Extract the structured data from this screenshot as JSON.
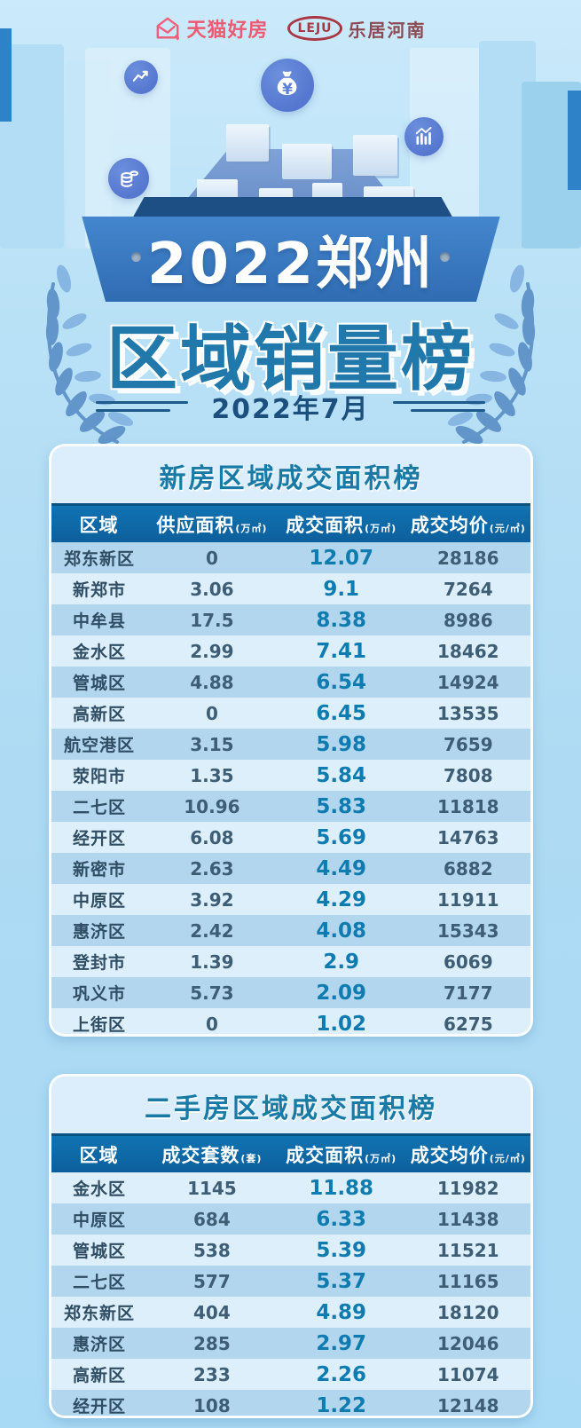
{
  "header": {
    "tmall_logo_text": "天猫好房",
    "leju_logo_text": "LEJU",
    "leju_brand_text": "乐居河南"
  },
  "hero": {
    "banner_title": "2022郑州",
    "main_title": "区域销量榜",
    "subtitle": "2022年7月",
    "money_bag_symbol": "¥"
  },
  "icons": {
    "money_bag": "money-bag-icon",
    "trend_line": "trend-line-icon",
    "bar_chart": "bar-chart-icon",
    "coins": "coins-icon",
    "laurel": "laurel-branch-icon",
    "tmall_house": "tmall-house-icon"
  },
  "colors": {
    "accent_teal": "#1a7aa6",
    "header_blue": "#0c5f9c",
    "highlight_value": "#0e7cb0",
    "row_dark": "#b1d6ee",
    "row_light": "#dceffb",
    "banner_blue": "#306cb2",
    "tmall_pink": "#ee5a72",
    "leju_red": "#a93844"
  },
  "chart_data": [
    {
      "type": "table",
      "title": "新房区域成交面积榜",
      "columns": [
        "区域",
        "供应面积",
        "成交面积",
        "成交均价"
      ],
      "units": [
        "",
        "(万㎡)",
        "(万㎡)",
        "(元/㎡)"
      ],
      "rows": [
        [
          "郑东新区",
          "0",
          "12.07",
          "28186"
        ],
        [
          "新郑市",
          "3.06",
          "9.1",
          "7264"
        ],
        [
          "中牟县",
          "17.5",
          "8.38",
          "8986"
        ],
        [
          "金水区",
          "2.99",
          "7.41",
          "18462"
        ],
        [
          "管城区",
          "4.88",
          "6.54",
          "14924"
        ],
        [
          "高新区",
          "0",
          "6.45",
          "13535"
        ],
        [
          "航空港区",
          "3.15",
          "5.98",
          "7659"
        ],
        [
          "荥阳市",
          "1.35",
          "5.84",
          "7808"
        ],
        [
          "二七区",
          "10.96",
          "5.83",
          "11818"
        ],
        [
          "经开区",
          "6.08",
          "5.69",
          "14763"
        ],
        [
          "新密市",
          "2.63",
          "4.49",
          "6882"
        ],
        [
          "中原区",
          "3.92",
          "4.29",
          "11911"
        ],
        [
          "惠济区",
          "2.42",
          "4.08",
          "15343"
        ],
        [
          "登封市",
          "1.39",
          "2.9",
          "6069"
        ],
        [
          "巩义市",
          "5.73",
          "2.09",
          "7177"
        ],
        [
          "上街区",
          "0",
          "1.02",
          "6275"
        ]
      ]
    },
    {
      "type": "table",
      "title": "二手房区域成交面积榜",
      "columns": [
        "区域",
        "成交套数",
        "成交面积",
        "成交均价"
      ],
      "units": [
        "",
        "(套)",
        "(万㎡)",
        "(元/㎡)"
      ],
      "rows": [
        [
          "金水区",
          "1145",
          "11.88",
          "11982"
        ],
        [
          "中原区",
          "684",
          "6.33",
          "11438"
        ],
        [
          "管城区",
          "538",
          "5.39",
          "11521"
        ],
        [
          "二七区",
          "577",
          "5.37",
          "11165"
        ],
        [
          "郑东新区",
          "404",
          "4.89",
          "18120"
        ],
        [
          "惠济区",
          "285",
          "2.97",
          "12046"
        ],
        [
          "高新区",
          "233",
          "2.26",
          "11074"
        ],
        [
          "经开区",
          "108",
          "1.22",
          "12148"
        ]
      ]
    }
  ]
}
